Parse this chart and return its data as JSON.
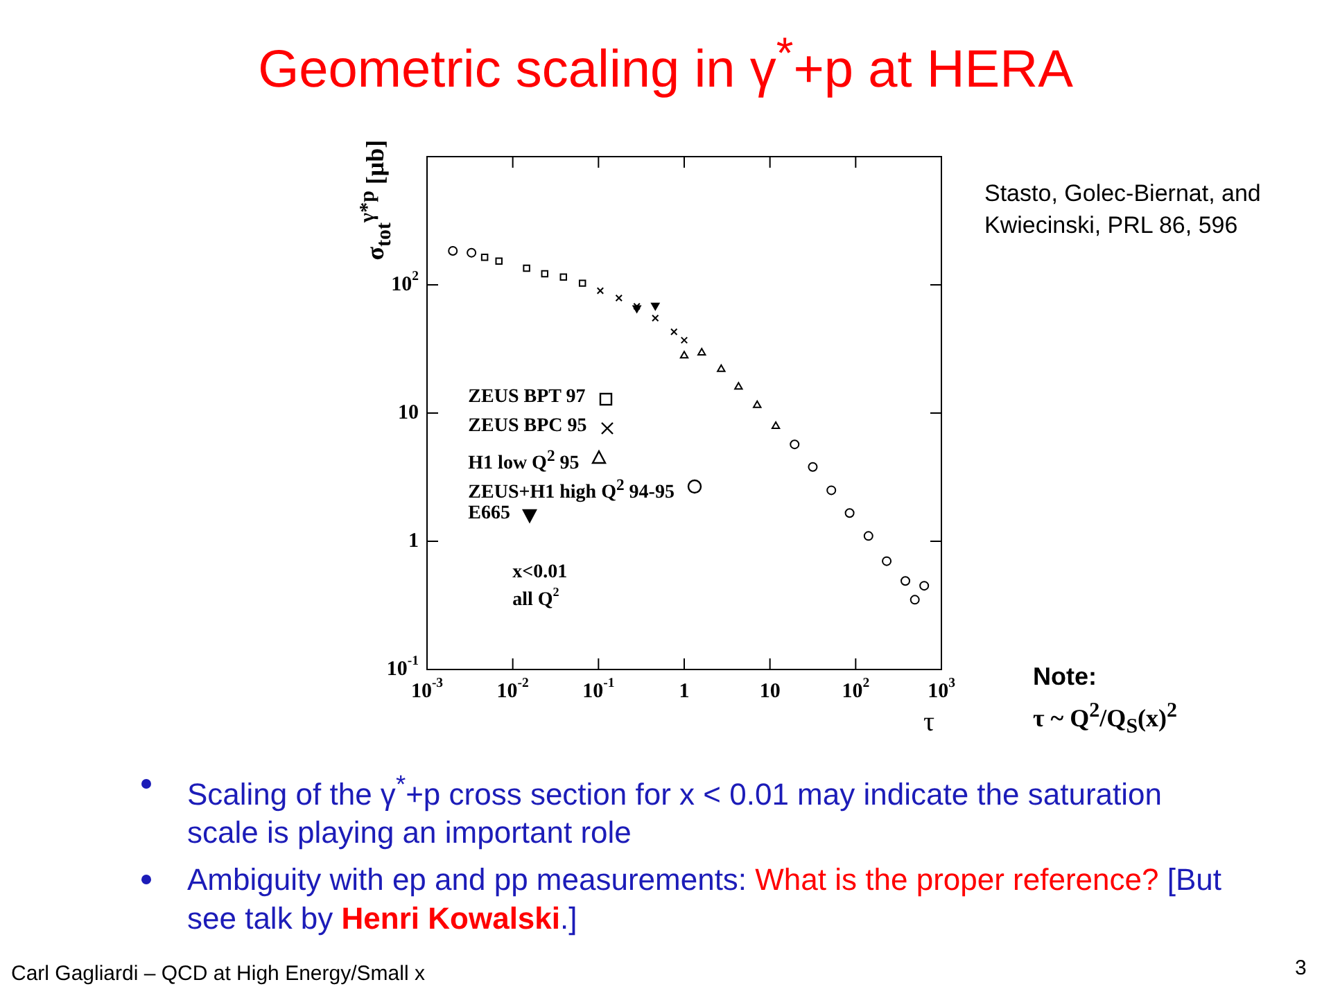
{
  "chart_data": {
    "type": "scatter",
    "title": "Geometric scaling in γ$^{*}$+p at HERA",
    "xlabel": "τ",
    "ylabel": "σ$_{tot}$$^{γ*p}$ [μb]",
    "log": "xy",
    "grid": false,
    "legend": "left",
    "xlim": [
      0.001,
      1000
    ],
    "xticks": [
      {
        "value": 0.001,
        "label": "10$^{-3}$"
      },
      {
        "value": 0.01,
        "label": "10$^{-2}$"
      },
      {
        "value": 0.1,
        "label": "10$^{-1}$"
      },
      1,
      10,
      {
        "value": 100,
        "label": "10$^{2}$"
      },
      {
        "value": 1000,
        "label": "10$^{3}$"
      }
    ],
    "ylim": [
      0.1,
      1000
    ],
    "yticks": [
      {
        "value": 0.1,
        "label": "10$^{-1}$"
      },
      1,
      10,
      {
        "value": 100,
        "label": "10$^{2}$"
      },
      {
        "value": 1000,
        "label": null
      }
    ],
    "series": [
      {
        "name": "ZEUS BPT 97",
        "color": "#000000",
        "marker": "square",
        "x": [
          0.0047,
          0.0069,
          0.0145,
          0.0236,
          0.039,
          0.065
        ],
        "values": [
          164,
          153,
          135,
          122,
          115,
          103
        ]
      },
      {
        "name": "ZEUS BPC 95",
        "color": "#000000",
        "marker": "cross",
        "x": [
          0.105,
          0.173,
          0.28,
          0.46,
          0.76,
          1
        ],
        "values": [
          90,
          79,
          68,
          55,
          43,
          37
        ]
      },
      {
        "name": "H1 low Q$^{2}$ 95",
        "color": "#000000",
        "marker": "triangle",
        "x": [
          1,
          1.6,
          2.7,
          4.3,
          7.1,
          11.7
        ],
        "values": [
          28,
          29.5,
          22,
          16,
          11.5,
          7.9
        ]
      },
      {
        "name": "ZEUS+H1 high Q$^{2}$ 94-95",
        "color": "#000000",
        "marker": "circle",
        "x": [
          0.002,
          0.0033,
          19.4,
          31.6,
          52,
          85,
          141,
          230,
          380,
          490,
          630
        ],
        "values": [
          184,
          178,
          5.7,
          3.8,
          2.5,
          1.66,
          1.1,
          0.7,
          0.49,
          0.35,
          0.45
        ]
      },
      {
        "name": "E665",
        "color": "#000000",
        "marker": "triangle-down",
        "x": [
          0.28,
          0.46
        ],
        "values": [
          66,
          69
        ]
      }
    ],
    "annotations": [
      "x<0.01",
      "all Q$^{2}$",
      "Stasto, Golec-Biernat, and Kwiecinski, PRL 86, 596",
      "Note:",
      "τ ~ Q$^{2}$/Q$_{S}$(x)$^{2}$",
      "Scaling of the γ$^{*}$+p cross section for x < 0.01 may indicate the saturation scale is playing an important role",
      "Ambiguity with ep and pp measurements:",
      "What is the proper reference?",
      "[But see talk by",
      "Henri Kowalski",
      ".]",
      "Carl Gagliardi – QCD at High Energy/Small x",
      "3"
    ]
  }
}
